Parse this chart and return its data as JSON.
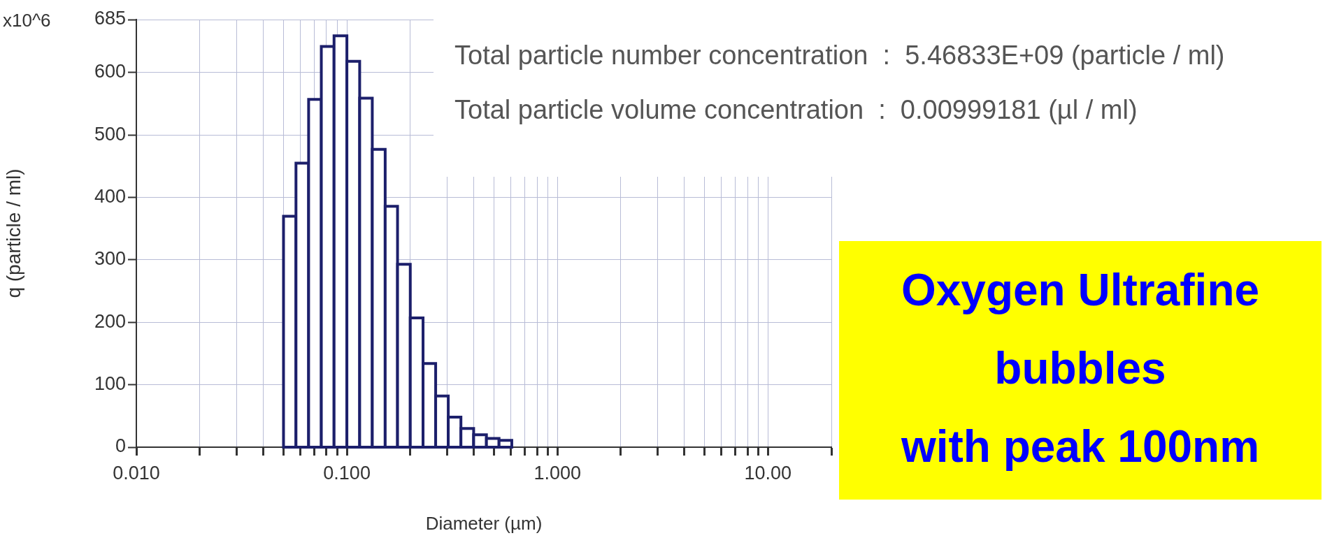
{
  "chart_data": {
    "type": "histogram",
    "xlabel": "Diameter (µm)",
    "ylabel": "q (particle / ml)",
    "bins": [
      0.05,
      0.0573,
      0.0658,
      0.0756,
      0.0869,
      0.1,
      0.115,
      0.132,
      0.152,
      0.174,
      0.2,
      0.23,
      0.264,
      0.303,
      0.348,
      0.4,
      0.46,
      0.528,
      0.607
    ],
    "values": [
      370,
      455,
      557,
      642,
      659,
      618,
      559,
      477,
      386,
      293,
      207,
      134,
      82,
      48,
      30,
      20,
      14,
      11
    ],
    "color": "#1c1f6b",
    "log": "x",
    "xlim": [
      0.01,
      20
    ],
    "ylim": [
      0,
      685
    ],
    "xticks": [
      {
        "value": 0.01,
        "label": "0.010"
      },
      {
        "value": 0.02,
        "label": null
      },
      {
        "value": 0.03,
        "label": null
      },
      {
        "value": 0.04,
        "label": null
      },
      {
        "value": 0.05,
        "label": null
      },
      {
        "value": 0.06,
        "label": null
      },
      {
        "value": 0.07,
        "label": null
      },
      {
        "value": 0.08,
        "label": null
      },
      {
        "value": 0.09,
        "label": null
      },
      {
        "value": 0.1,
        "label": "0.100"
      },
      {
        "value": 0.2,
        "label": null
      },
      {
        "value": 0.3,
        "label": null
      },
      {
        "value": 0.4,
        "label": null
      },
      {
        "value": 0.5,
        "label": null
      },
      {
        "value": 0.6,
        "label": null
      },
      {
        "value": 0.7,
        "label": null
      },
      {
        "value": 0.8,
        "label": null
      },
      {
        "value": 0.9,
        "label": null
      },
      {
        "value": 1,
        "label": "1.000"
      },
      {
        "value": 2,
        "label": null
      },
      {
        "value": 3,
        "label": null
      },
      {
        "value": 4,
        "label": null
      },
      {
        "value": 5,
        "label": null
      },
      {
        "value": 6,
        "label": null
      },
      {
        "value": 7,
        "label": null
      },
      {
        "value": 8,
        "label": null
      },
      {
        "value": 9,
        "label": null
      },
      {
        "value": 10,
        "label": "10.00"
      },
      {
        "value": 20,
        "label": null
      }
    ],
    "yticks": [
      0,
      100,
      200,
      300,
      400,
      500,
      600,
      685
    ],
    "grid": true,
    "annotations": [
      "x10^6",
      "Total particle number concentration  :  5.46833E+09 (particle / ml)",
      "Total particle volume concentration  :  0.00999181 (µl / ml)",
      "Oxygen Ultrafine\nbubbles\nwith peak 100nm"
    ]
  }
}
